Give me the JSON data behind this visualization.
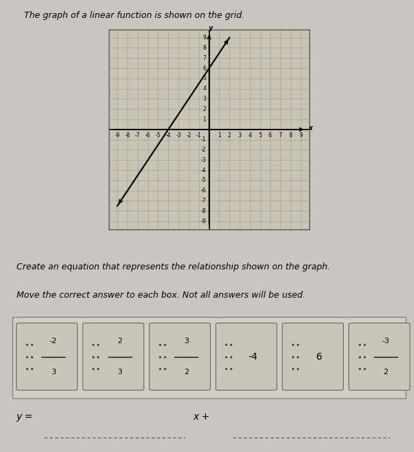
{
  "title": "The graph of a linear function is shown on the grid.",
  "instruction1": "Create an equation that represents the relationship shown on the graph.",
  "instruction2": "Move the correct answer to each box. Not all answers will be used.",
  "equation_label": "y =",
  "equation_middle": "x +",
  "slope": 1.5,
  "intercept": 6,
  "x_range": [
    -9,
    9
  ],
  "y_range": [
    -9,
    9
  ],
  "grid_color": "#999999",
  "axis_color": "#000000",
  "line_color": "#000000",
  "background_color": "#c8c6be",
  "graph_bg": "#c8c5b5",
  "answer_fractions": [
    {
      "num": "-2",
      "den": "3"
    },
    {
      "num": "2",
      "den": "3"
    },
    {
      "num": "3",
      "den": "2"
    },
    {
      "num": "-4",
      "den": null
    },
    {
      "num": "6",
      "den": null
    },
    {
      "num": "-3",
      "den": "2"
    }
  ],
  "outer_box_color": "#c0bdb0",
  "inner_box_color": "#d0cec2",
  "title_fontsize": 9,
  "instr_fontsize": 9,
  "tick_fontsize": 5.5
}
